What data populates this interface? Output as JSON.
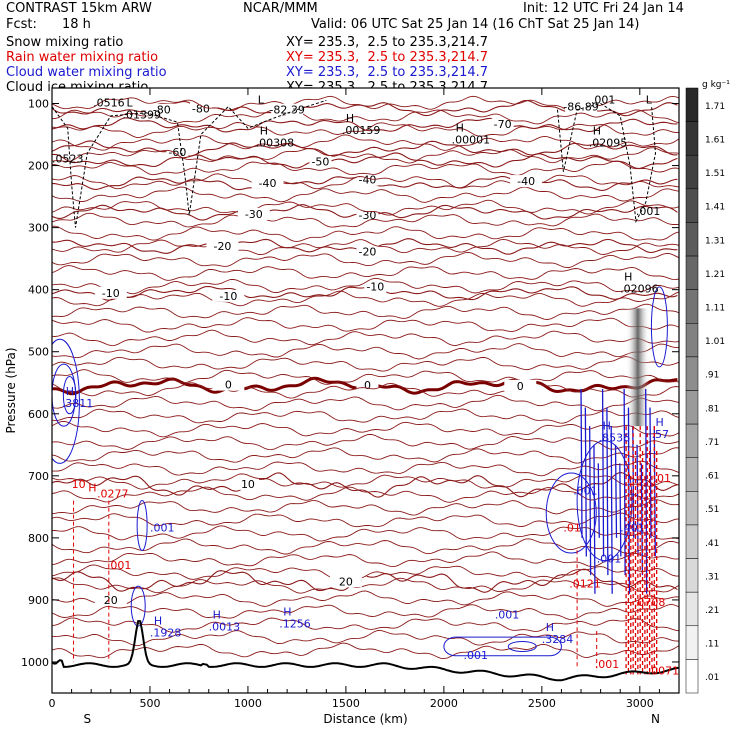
{
  "header": {
    "model": "CONTRAST 15km ARW",
    "org": "NCAR/MMM",
    "init": "Init: 12 UTC Fri 24 Jan 14",
    "fcst_label": "Fcst:",
    "fcst_value": "18 h",
    "valid": "Valid: 06 UTC Sat 25 Jan 14 (16 ChT Sat 25 Jan 14)",
    "fields": [
      {
        "name": "Snow mixing ratio",
        "xy": "XY= 235.3,  2.5 to 235.3,214.7",
        "color": "#000000"
      },
      {
        "name": "Rain water mixing ratio",
        "xy": "XY= 235.3,  2.5 to 235.3,214.7",
        "color": "#e00000"
      },
      {
        "name": "Cloud water mixing ratio",
        "xy": "XY= 235.3,  2.5 to 235.3,214.7",
        "color": "#1a1ad0"
      },
      {
        "name": "Cloud ice mixing ratio",
        "xy": "XY= 235.3,  2.5 to 235.3,214.7",
        "color": "#000000"
      }
    ]
  },
  "chart_data": {
    "type": "cross-section contour",
    "xlabel": "Distance (km)",
    "ylabel": "Pressure (hPa)",
    "xlim": [
      0,
      3200
    ],
    "ylim": [
      1050,
      75
    ],
    "xticks": [
      0,
      500,
      1000,
      1500,
      2000,
      2500,
      3000
    ],
    "yticks": [
      100,
      200,
      300,
      400,
      500,
      600,
      700,
      800,
      900,
      1000
    ],
    "end_labels": {
      "left": "S",
      "right": "N"
    },
    "colorbar": {
      "unit": "g kg⁻¹",
      "levels": [
        "1.71",
        "1.61",
        "1.51",
        "1.41",
        "1.31",
        "1.21",
        "1.11",
        "1.01",
        ".91",
        ".81",
        ".71",
        ".61",
        ".51",
        ".41",
        ".31",
        ".21",
        ".11",
        ".01"
      ]
    },
    "temperature_isotherms": [
      {
        "p": 108,
        "label": "-80",
        "x": 760,
        "bold": false
      },
      {
        "p": 135,
        "label": "-70",
        "x": 2300,
        "bold": false
      },
      {
        "p": 173,
        "label": "-60",
        "x": 640,
        "bold": false
      },
      {
        "p": 192,
        "label": "-50",
        "x": 1370,
        "bold": false
      },
      {
        "p": 228,
        "label": "-40",
        "x": 1610,
        "bold": false
      },
      {
        "p": 275,
        "label": "-30",
        "x": 1610,
        "bold": false
      },
      {
        "p": 330,
        "label": "-20",
        "x": 1610,
        "bold": false
      },
      {
        "p": 405,
        "label": "-10",
        "x": 1650,
        "bold": false
      },
      {
        "p": 555,
        "label": "0",
        "x": 1610,
        "bold": true
      },
      {
        "p": 715,
        "label": "10",
        "x": 1000,
        "bold": false
      },
      {
        "p": 870,
        "label": "20",
        "x": 1550,
        "bold": false
      }
    ],
    "isotherm_labels_extra": [
      {
        "x": 560,
        "p": 110,
        "text": "-80"
      },
      {
        "x": 1200,
        "p": 110,
        "text": "-82.39"
      },
      {
        "x": 2700,
        "p": 105,
        "text": "-86.89"
      },
      {
        "x": 1100,
        "p": 228,
        "text": "-40"
      },
      {
        "x": 2420,
        "p": 225,
        "text": "-40"
      },
      {
        "x": 1030,
        "p": 278,
        "text": "-30"
      },
      {
        "x": 870,
        "p": 330,
        "text": "-20"
      },
      {
        "x": 300,
        "p": 405,
        "text": "-10"
      },
      {
        "x": 900,
        "p": 410,
        "text": "-10"
      },
      {
        "x": 2390,
        "p": 555,
        "text": "0"
      },
      {
        "x": 900,
        "p": 553,
        "text": "0"
      },
      {
        "x": 1500,
        "p": 870,
        "text": "20"
      },
      {
        "x": 300,
        "p": 900,
        "text": "20"
      }
    ],
    "max_min_labels": [
      {
        "x": 380,
        "p": 105,
        "mark": "L",
        "value": ".01399",
        "color": "#000000"
      },
      {
        "x": 1050,
        "p": 100,
        "mark": "L",
        "value": "",
        "color": "#000000"
      },
      {
        "x": 1060,
        "p": 150,
        "mark": "H",
        "value": ".00308",
        "color": "#000000"
      },
      {
        "x": 1500,
        "p": 130,
        "mark": "H",
        "value": ".00159",
        "color": "#000000"
      },
      {
        "x": 2060,
        "p": 145,
        "mark": "H",
        "value": ".00001",
        "color": "#000000"
      },
      {
        "x": 2760,
        "p": 150,
        "mark": "H",
        "value": ".02095",
        "color": "#000000"
      },
      {
        "x": 3030,
        "p": 100,
        "mark": "L",
        "value": "",
        "color": "#000000"
      },
      {
        "x": 2920,
        "p": 385,
        "mark": "H",
        "value": ".02096",
        "color": "#000000"
      },
      {
        "x": 70,
        "p": 570,
        "mark": "H",
        "value": ".3811",
        "color": "#1a1ad0"
      },
      {
        "x": 2810,
        "p": 625,
        "mark": "H",
        "value": ".8536",
        "color": "#1a1ad0"
      },
      {
        "x": 3080,
        "p": 620,
        "mark": "H",
        "value": ".57",
        "color": "#1a1ad0"
      },
      {
        "x": 520,
        "p": 940,
        "mark": "H",
        "value": ".1928",
        "color": "#1a1ad0"
      },
      {
        "x": 820,
        "p": 930,
        "mark": "H",
        "value": ".0013",
        "color": "#1a1ad0"
      },
      {
        "x": 1180,
        "p": 925,
        "mark": "H",
        "value": ".1256",
        "color": "#1a1ad0"
      },
      {
        "x": 2520,
        "p": 950,
        "mark": "H",
        "value": ".3284",
        "color": "#1a1ad0"
      }
    ],
    "contour_labels": [
      {
        "x": 210,
        "p": 105,
        "text": ".0516",
        "color": "#000000"
      },
      {
        "x": 0,
        "p": 195,
        "text": ".0523",
        "color": "#000000"
      },
      {
        "x": 2750,
        "p": 100,
        "text": ".001",
        "color": "#000000"
      },
      {
        "x": 2980,
        "p": 280,
        "text": ".001",
        "color": "#000000"
      },
      {
        "x": 500,
        "p": 790,
        "text": ".001",
        "color": "#1a1ad0"
      },
      {
        "x": 2660,
        "p": 730,
        "text": ".001",
        "color": "#1a1ad0"
      },
      {
        "x": 2780,
        "p": 840,
        "text": ".001",
        "color": "#1a1ad0"
      },
      {
        "x": 2900,
        "p": 790,
        "text": ".401",
        "color": "#1a1ad0"
      },
      {
        "x": 2260,
        "p": 930,
        "text": ".001",
        "color": "#1a1ad0"
      },
      {
        "x": 2100,
        "p": 995,
        "text": ".001",
        "color": "#1a1ad0"
      },
      {
        "x": 230,
        "p": 735,
        "text": ".0277",
        "color": "#e00000"
      },
      {
        "x": 280,
        "p": 850,
        "text": ".001",
        "color": "#e00000"
      },
      {
        "x": 2640,
        "p": 880,
        "text": ".0121",
        "color": "#e00000"
      },
      {
        "x": 2770,
        "p": 1010,
        "text": ".001",
        "color": "#e00000"
      },
      {
        "x": 3040,
        "p": 1020,
        "text": ".0071",
        "color": "#e00000"
      },
      {
        "x": 3070,
        "p": 710,
        "text": ".01",
        "color": "#e00000"
      },
      {
        "x": 2610,
        "p": 790,
        "text": ".01",
        "color": "#e00000"
      },
      {
        "x": 2970,
        "p": 910,
        "text": ".0708",
        "color": "#e00000"
      },
      {
        "x": 100,
        "p": 720,
        "text": "10",
        "color": "#e00000"
      },
      {
        "x": 185,
        "p": 725,
        "text": "H",
        "color": "#e00000"
      }
    ]
  }
}
